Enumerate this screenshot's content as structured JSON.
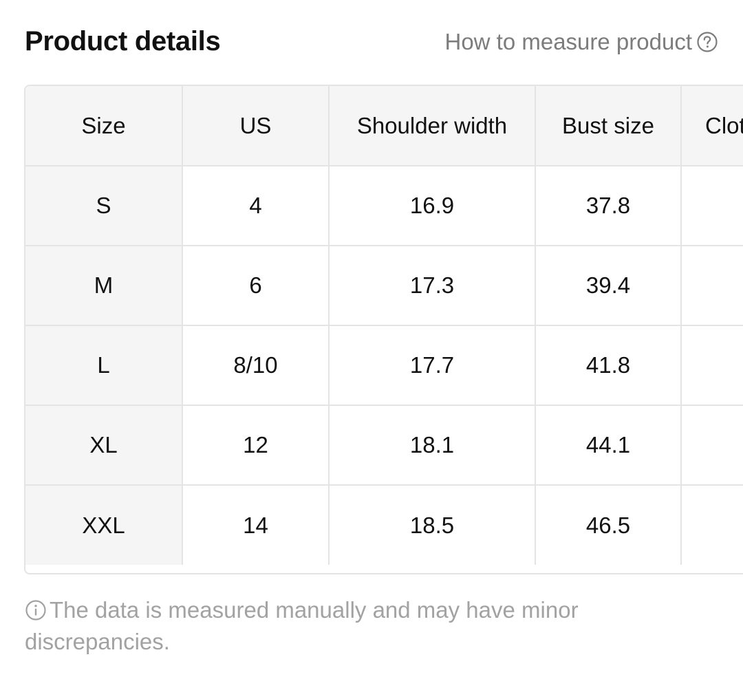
{
  "header": {
    "title": "Product details",
    "measure_link": "How to measure product",
    "measure_icon": "question-circle-icon"
  },
  "table": {
    "headers": [
      "Size",
      "US",
      "Shoulder width",
      "Bust size",
      "Clot"
    ],
    "rows": [
      {
        "size": "S",
        "us": "4",
        "shoulder": "16.9",
        "bust": "37.8",
        "cloth": ""
      },
      {
        "size": "M",
        "us": "6",
        "shoulder": "17.3",
        "bust": "39.4",
        "cloth": ""
      },
      {
        "size": "L",
        "us": "8/10",
        "shoulder": "17.7",
        "bust": "41.8",
        "cloth": ""
      },
      {
        "size": "XL",
        "us": "12",
        "shoulder": "18.1",
        "bust": "44.1",
        "cloth": ""
      },
      {
        "size": "XXL",
        "us": "14",
        "shoulder": "18.5",
        "bust": "46.5",
        "cloth": ""
      }
    ]
  },
  "note": {
    "icon": "info-circle-icon",
    "text": "The data is measured manually and may have minor discrepancies."
  },
  "colors": {
    "text": "#111111",
    "muted": "#7c7c7c",
    "note": "#a2a2a2",
    "header_bg": "#f5f5f5",
    "border": "#e4e4e4"
  }
}
